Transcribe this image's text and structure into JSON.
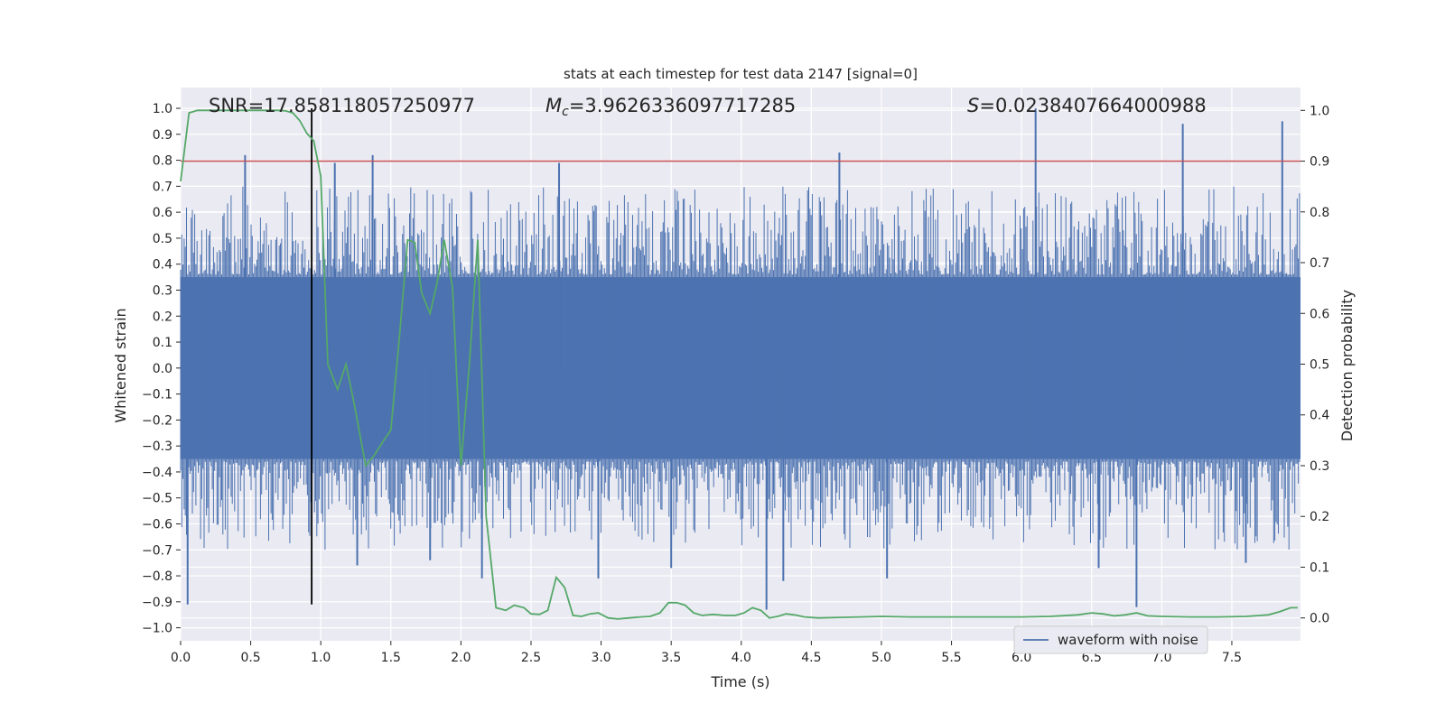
{
  "chart_data": {
    "type": "line",
    "title": "stats at each timestep for test data 2147 [signal=0]",
    "xlabel": "Time (s)",
    "ylabel": "Whitened strain",
    "ylabel_right": "Detection probability",
    "xlim": [
      0.0,
      7.99
    ],
    "ylim": [
      -1.05,
      1.08
    ],
    "ylim_right": [
      -0.045,
      1.045
    ],
    "x_ticks": [
      0.0,
      0.5,
      1.0,
      1.5,
      2.0,
      2.5,
      3.0,
      3.5,
      4.0,
      4.5,
      5.0,
      5.5,
      6.0,
      6.5,
      7.0,
      7.5
    ],
    "x_tick_labels": [
      "0.0",
      "0.5",
      "1.0",
      "1.5",
      "2.0",
      "2.5",
      "3.0",
      "3.5",
      "4.0",
      "4.5",
      "5.0",
      "5.5",
      "6.0",
      "6.5",
      "7.0",
      "7.5"
    ],
    "y_ticks": [
      1.0,
      0.9,
      0.8,
      0.7,
      0.6,
      0.5,
      0.4,
      0.3,
      0.2,
      0.1,
      0.0,
      -0.1,
      -0.2,
      -0.3,
      -0.4,
      -0.5,
      -0.6,
      -0.7,
      -0.8,
      -0.9,
      -1.0
    ],
    "y_tick_labels": [
      "1.0",
      "0.9",
      "0.8",
      "0.7",
      "0.6",
      "0.5",
      "0.4",
      "0.3",
      "0.2",
      "0.1",
      "0.0",
      "−0.1",
      "−0.2",
      "−0.3",
      "−0.4",
      "−0.5",
      "−0.6",
      "−0.7",
      "−0.8",
      "−0.9",
      "−1.0"
    ],
    "y_ticks_right": [
      1.0,
      0.9,
      0.8,
      0.7,
      0.6,
      0.5,
      0.4,
      0.3,
      0.2,
      0.1,
      0.0
    ],
    "y_tick_labels_right": [
      "1.0",
      "0.9",
      "0.8",
      "0.7",
      "0.6",
      "0.5",
      "0.4",
      "0.3",
      "0.2",
      "0.1",
      "0.0"
    ],
    "grid": true,
    "annotations": {
      "snr": "SNR=17.858118057250977",
      "mc_symbol": "M",
      "mc_sub": "c",
      "mc_value": "=3.9626336097717285",
      "s_symbol": "S",
      "s_value": "=0.0238407664000988"
    },
    "legend": {
      "label": "waveform with noise",
      "placement": "lower-right"
    },
    "threshold_line": {
      "y_right": 0.9,
      "color": "#c44e52"
    },
    "marker_line": {
      "x": 0.935,
      "color": "#000000"
    },
    "waveform": {
      "color": "#4c72b0",
      "band_low": -0.35,
      "band_high": 0.35,
      "peaks": [
        {
          "x": 0.05,
          "y": -0.91
        },
        {
          "x": 0.46,
          "y": 0.82
        },
        {
          "x": 1.1,
          "y": 0.79
        },
        {
          "x": 1.37,
          "y": 0.82
        },
        {
          "x": 1.26,
          "y": -0.76
        },
        {
          "x": 1.78,
          "y": -0.74
        },
        {
          "x": 2.15,
          "y": -0.81
        },
        {
          "x": 2.7,
          "y": 0.79
        },
        {
          "x": 2.98,
          "y": -0.81
        },
        {
          "x": 3.5,
          "y": -0.77
        },
        {
          "x": 4.18,
          "y": -0.93
        },
        {
          "x": 4.3,
          "y": -0.82
        },
        {
          "x": 4.7,
          "y": 0.83
        },
        {
          "x": 5.04,
          "y": -0.81
        },
        {
          "x": 6.1,
          "y": 1.0
        },
        {
          "x": 6.55,
          "y": -0.77
        },
        {
          "x": 6.82,
          "y": -0.92
        },
        {
          "x": 7.15,
          "y": 0.94
        },
        {
          "x": 7.86,
          "y": 0.95
        },
        {
          "x": 7.6,
          "y": -0.75
        }
      ]
    },
    "series": [
      {
        "name": "detection probability",
        "color": "#55a868",
        "axis": "right",
        "x": [
          0.0,
          0.06,
          0.12,
          0.2,
          0.3,
          0.4,
          0.5,
          0.6,
          0.7,
          0.75,
          0.8,
          0.85,
          0.9,
          0.95,
          1.0,
          1.05,
          1.12,
          1.18,
          1.24,
          1.32,
          1.38,
          1.45,
          1.5,
          1.56,
          1.62,
          1.67,
          1.72,
          1.78,
          1.83,
          1.88,
          1.94,
          2.0,
          2.06,
          2.12,
          2.18,
          2.25,
          2.32,
          2.38,
          2.45,
          2.5,
          2.56,
          2.62,
          2.68,
          2.74,
          2.8,
          2.86,
          2.92,
          2.98,
          3.05,
          3.12,
          3.2,
          3.28,
          3.35,
          3.42,
          3.48,
          3.54,
          3.6,
          3.66,
          3.72,
          3.8,
          3.88,
          3.96,
          4.02,
          4.08,
          4.14,
          4.2,
          4.26,
          4.32,
          4.38,
          4.45,
          4.55,
          4.7,
          4.85,
          5.0,
          5.2,
          5.4,
          5.6,
          5.8,
          6.0,
          6.2,
          6.4,
          6.5,
          6.58,
          6.66,
          6.74,
          6.82,
          6.9,
          7.0,
          7.2,
          7.4,
          7.6,
          7.76,
          7.84,
          7.92,
          7.97
        ],
        "values": [
          0.86,
          0.995,
          1.0,
          1.0,
          1.0,
          1.0,
          1.0,
          1.0,
          1.0,
          0.999,
          0.995,
          0.98,
          0.955,
          0.94,
          0.87,
          0.5,
          0.45,
          0.5,
          0.42,
          0.3,
          0.32,
          0.35,
          0.37,
          0.55,
          0.745,
          0.74,
          0.64,
          0.6,
          0.66,
          0.745,
          0.65,
          0.3,
          0.5,
          0.745,
          0.2,
          0.02,
          0.015,
          0.025,
          0.02,
          0.008,
          0.007,
          0.015,
          0.08,
          0.06,
          0.005,
          0.003,
          0.008,
          0.01,
          0.0,
          -0.002,
          0.0,
          0.002,
          0.003,
          0.01,
          0.03,
          0.03,
          0.025,
          0.01,
          0.005,
          0.007,
          0.005,
          0.005,
          0.01,
          0.02,
          0.015,
          0.0,
          0.003,
          0.008,
          0.006,
          0.002,
          0.0,
          0.001,
          0.002,
          0.003,
          0.002,
          0.002,
          0.002,
          0.002,
          0.002,
          0.003,
          0.006,
          0.01,
          0.008,
          0.004,
          0.006,
          0.01,
          0.004,
          0.003,
          0.002,
          0.002,
          0.003,
          0.006,
          0.012,
          0.02,
          0.02
        ]
      }
    ]
  }
}
